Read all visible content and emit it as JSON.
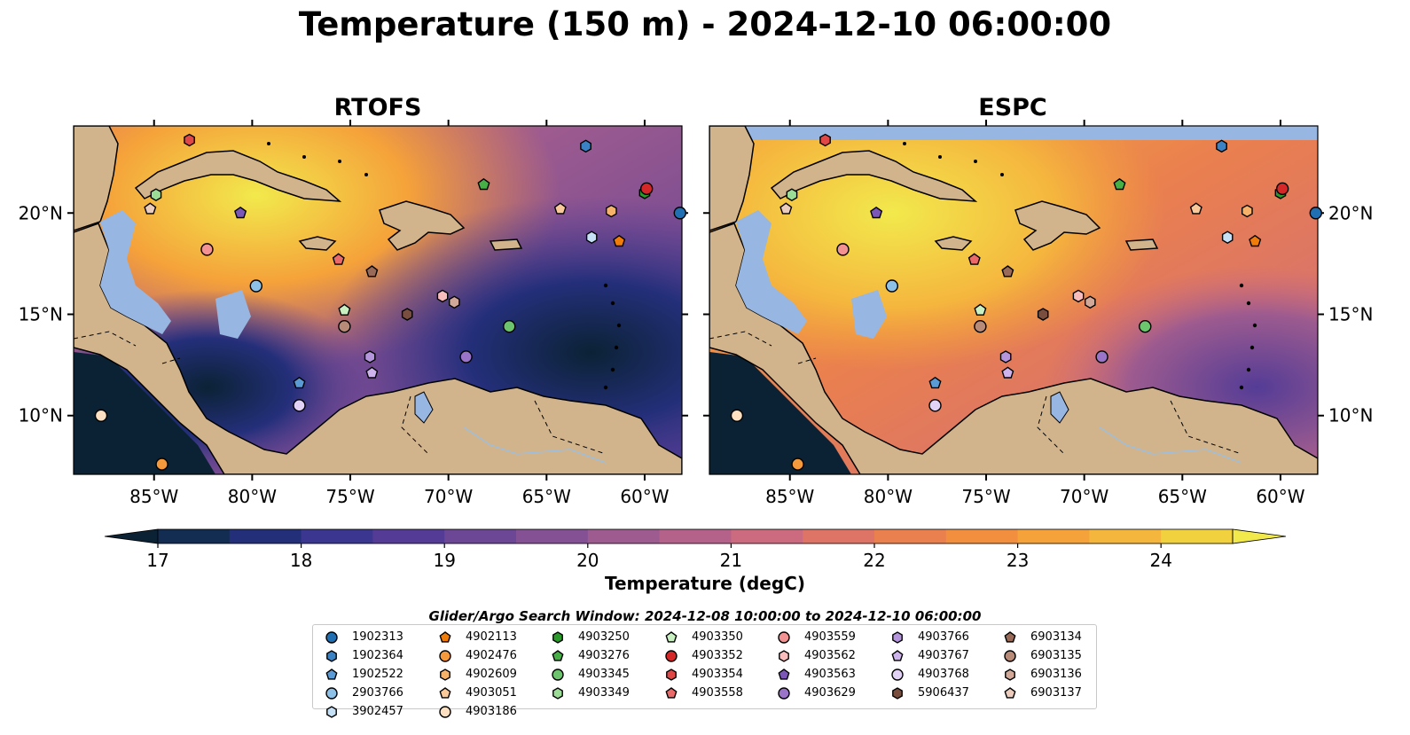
{
  "figure": {
    "title": "Temperature (150 m) - 2024-12-10 06:00:00",
    "panels": [
      {
        "title": "RTOFS"
      },
      {
        "title": "ESPC"
      }
    ],
    "lon_ticks": [
      "85°W",
      "80°W",
      "75°W",
      "70°W",
      "65°W",
      "60°W"
    ],
    "lat_ticks": [
      "20°N",
      "15°N",
      "10°N"
    ],
    "colors": {
      "land": "#d2b48c",
      "shallow_ocean": "#97b6e1",
      "rivers": "#9ebedb"
    }
  },
  "colorbar": {
    "label": "Temperature (degC)",
    "ticks": [
      "17",
      "18",
      "19",
      "20",
      "21",
      "22",
      "23",
      "24"
    ],
    "levels": [
      17,
      24.5
    ],
    "extend": "both",
    "colors": [
      "#0b2235",
      "#132c52",
      "#242f7a",
      "#3b3690",
      "#543c96",
      "#6b4796",
      "#835194",
      "#9d5b8f",
      "#b5628a",
      "#cc6a80",
      "#dd7466",
      "#ea804e",
      "#f18f3e",
      "#f5a23a",
      "#f5b63e",
      "#f2d13f",
      "#f2e94c"
    ]
  },
  "search_window": "Glider/Argo Search Window: 2024-12-08 10:00:00 to 2024-12-10 06:00:00",
  "legend": {
    "items": [
      {
        "id": "1902313",
        "shape": "circle",
        "color": "#1f6fb2"
      },
      {
        "id": "1902364",
        "shape": "hexagon",
        "color": "#3b82c4"
      },
      {
        "id": "1902522",
        "shape": "pentagon",
        "color": "#5b9bd5"
      },
      {
        "id": "2903766",
        "shape": "circle",
        "color": "#8ec1e8"
      },
      {
        "id": "3902457",
        "shape": "hexagon",
        "color": "#c6e0f5"
      },
      {
        "id": "4902113",
        "shape": "pentagon",
        "color": "#f07c0a"
      },
      {
        "id": "4902476",
        "shape": "circle",
        "color": "#f59a3c"
      },
      {
        "id": "4902609",
        "shape": "hexagon",
        "color": "#f7b26a"
      },
      {
        "id": "4903051",
        "shape": "pentagon",
        "color": "#fac99a"
      },
      {
        "id": "4903186",
        "shape": "circle",
        "color": "#fde0c2"
      },
      {
        "id": "4903250",
        "shape": "hexagon",
        "color": "#2a9a2a"
      },
      {
        "id": "4903276",
        "shape": "pentagon",
        "color": "#46b046"
      },
      {
        "id": "4903345",
        "shape": "circle",
        "color": "#6cc46c"
      },
      {
        "id": "4903349",
        "shape": "hexagon",
        "color": "#9bdd96"
      },
      {
        "id": "4903350",
        "shape": "pentagon",
        "color": "#c8f0c0"
      },
      {
        "id": "4903352",
        "shape": "circle",
        "color": "#d62728"
      },
      {
        "id": "4903354",
        "shape": "hexagon",
        "color": "#e04848"
      },
      {
        "id": "4903558",
        "shape": "pentagon",
        "color": "#ea6a6a"
      },
      {
        "id": "4903559",
        "shape": "circle",
        "color": "#f29292"
      },
      {
        "id": "4903562",
        "shape": "hexagon",
        "color": "#f8bcbc"
      },
      {
        "id": "4903563",
        "shape": "pentagon",
        "color": "#7b58b8"
      },
      {
        "id": "4903629",
        "shape": "circle",
        "color": "#9a74c8"
      },
      {
        "id": "4903766",
        "shape": "hexagon",
        "color": "#b596dc"
      },
      {
        "id": "4903767",
        "shape": "pentagon",
        "color": "#cdb4ec"
      },
      {
        "id": "4903768",
        "shape": "circle",
        "color": "#e2d2f6"
      },
      {
        "id": "5906437",
        "shape": "hexagon",
        "color": "#7a4e3e"
      },
      {
        "id": "6903134",
        "shape": "pentagon",
        "color": "#9a6a58"
      },
      {
        "id": "6903135",
        "shape": "circle",
        "color": "#b88a78"
      },
      {
        "id": "6903136",
        "shape": "hexagon",
        "color": "#d2a898"
      },
      {
        "id": "6903137",
        "shape": "pentagon",
        "color": "#ecccbc"
      }
    ]
  },
  "observations": [
    {
      "id": "1902313",
      "lon": -58.2,
      "lat": 20.0
    },
    {
      "id": "1902364",
      "lon": -63.0,
      "lat": 23.3
    },
    {
      "id": "1902522",
      "lon": -77.6,
      "lat": 11.6
    },
    {
      "id": "2903766",
      "lon": -79.8,
      "lat": 16.4
    },
    {
      "id": "3902457",
      "lon": -62.7,
      "lat": 18.8
    },
    {
      "id": "4902113",
      "lon": -61.3,
      "lat": 18.6
    },
    {
      "id": "4902476",
      "lon": -84.6,
      "lat": 7.6
    },
    {
      "id": "4902609",
      "lon": -61.7,
      "lat": 20.1
    },
    {
      "id": "4903051",
      "lon": -64.3,
      "lat": 20.2
    },
    {
      "id": "4903186",
      "lon": -87.7,
      "lat": 10.0
    },
    {
      "id": "4903250",
      "lon": -60.0,
      "lat": 21.0
    },
    {
      "id": "4903276",
      "lon": -68.2,
      "lat": 21.4
    },
    {
      "id": "4903345",
      "lon": -66.9,
      "lat": 14.4
    },
    {
      "id": "4903349",
      "lon": -84.9,
      "lat": 20.9
    },
    {
      "id": "4903350",
      "lon": -75.3,
      "lat": 15.2
    },
    {
      "id": "4903352",
      "lon": -59.9,
      "lat": 21.2
    },
    {
      "id": "4903354",
      "lon": -83.2,
      "lat": 23.6
    },
    {
      "id": "4903558",
      "lon": -75.6,
      "lat": 17.7
    },
    {
      "id": "4903559",
      "lon": -82.3,
      "lat": 18.2
    },
    {
      "id": "4903562",
      "lon": -70.3,
      "lat": 15.9
    },
    {
      "id": "4903563",
      "lon": -80.6,
      "lat": 20.0
    },
    {
      "id": "4903629",
      "lon": -69.1,
      "lat": 12.9
    },
    {
      "id": "4903766",
      "lon": -74.0,
      "lat": 12.9
    },
    {
      "id": "4903767",
      "lon": -73.9,
      "lat": 12.1
    },
    {
      "id": "4903768",
      "lon": -77.6,
      "lat": 10.5
    },
    {
      "id": "5906437",
      "lon": -72.1,
      "lat": 15.0
    },
    {
      "id": "6903134",
      "lon": -73.9,
      "lat": 17.1
    },
    {
      "id": "6903135",
      "lon": -75.3,
      "lat": 14.4
    },
    {
      "id": "6903136",
      "lon": -69.7,
      "lat": 15.6
    },
    {
      "id": "6903137",
      "lon": -85.2,
      "lat": 20.2
    }
  ]
}
